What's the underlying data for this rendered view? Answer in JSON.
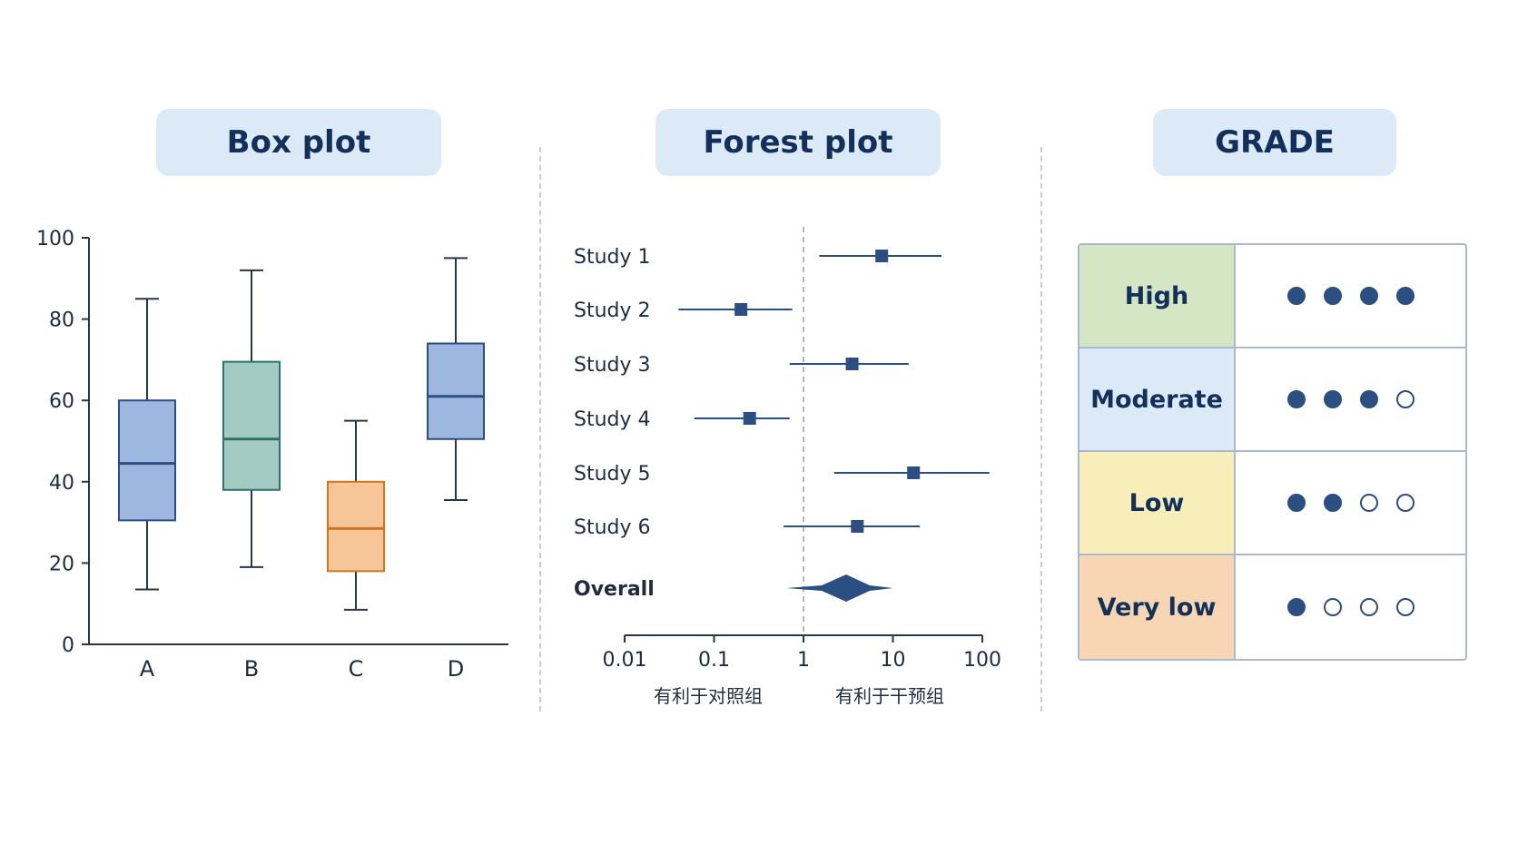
{
  "panels": {
    "box": {
      "title": "Box plot"
    },
    "forest": {
      "title": "Forest plot"
    },
    "grade": {
      "title": "GRADE"
    }
  },
  "chart_data": [
    {
      "type": "box",
      "title": "Box plot",
      "ylim": [
        0,
        100
      ],
      "yticks": [
        0,
        20,
        40,
        60,
        80,
        100
      ],
      "categories": [
        "A",
        "B",
        "C",
        "D"
      ],
      "boxes": [
        {
          "category": "A",
          "min": 13.5,
          "q1": 30.5,
          "median": 44.5,
          "q3": 60,
          "max": 85,
          "fill": "#9db7e0",
          "stroke": "#2c4f83"
        },
        {
          "category": "B",
          "min": 19,
          "q1": 38,
          "median": 50.5,
          "q3": 69.5,
          "max": 92,
          "fill": "#a3cbc4",
          "stroke": "#2a7468"
        },
        {
          "category": "C",
          "min": 8.5,
          "q1": 18,
          "median": 28.5,
          "q3": 40,
          "max": 55,
          "fill": "#f6c598",
          "stroke": "#d1751f"
        },
        {
          "category": "D",
          "min": 35.5,
          "q1": 50.5,
          "median": 61,
          "q3": 74,
          "max": 95,
          "fill": "#9db7e0",
          "stroke": "#2c4f83"
        }
      ],
      "grid": false
    },
    {
      "type": "forest",
      "title": "Forest plot",
      "scale": "log",
      "xlim": [
        0.01,
        100
      ],
      "xtick_labels": [
        "0.01",
        "0.1",
        "1",
        "10",
        "100"
      ],
      "reference_line": 1,
      "xlabel_left": "有利于对照组",
      "xlabel_right": "有利于干预组",
      "studies": [
        {
          "label": "Study 1",
          "estimate": 7.5,
          "lower": 1.5,
          "upper": 35
        },
        {
          "label": "Study 2",
          "estimate": 0.2,
          "lower": 0.04,
          "upper": 0.75
        },
        {
          "label": "Study 3",
          "estimate": 3.5,
          "lower": 0.7,
          "upper": 15
        },
        {
          "label": "Study 4",
          "estimate": 0.25,
          "lower": 0.06,
          "upper": 0.7
        },
        {
          "label": "Study 5",
          "estimate": 17,
          "lower": 2.2,
          "upper": 120
        },
        {
          "label": "Study 6",
          "estimate": 4,
          "lower": 0.6,
          "upper": 20
        }
      ],
      "overall": {
        "label": "Overall",
        "estimate": 3,
        "lower": 0.65,
        "upper": 10,
        "ci_lower": 1.6,
        "ci_upper": 5.5
      },
      "color": "#2c4f83"
    }
  ],
  "grade": {
    "rows": [
      {
        "label": "High",
        "filled": 4,
        "total": 4,
        "bg": "#d5e6c4"
      },
      {
        "label": "Moderate",
        "filled": 3,
        "total": 4,
        "bg": "#dce9f7"
      },
      {
        "label": "Low",
        "filled": 2,
        "total": 4,
        "bg": "#f8eeb9"
      },
      {
        "label": "Very low",
        "filled": 1,
        "total": 4,
        "bg": "#f9d6b3"
      }
    ]
  }
}
